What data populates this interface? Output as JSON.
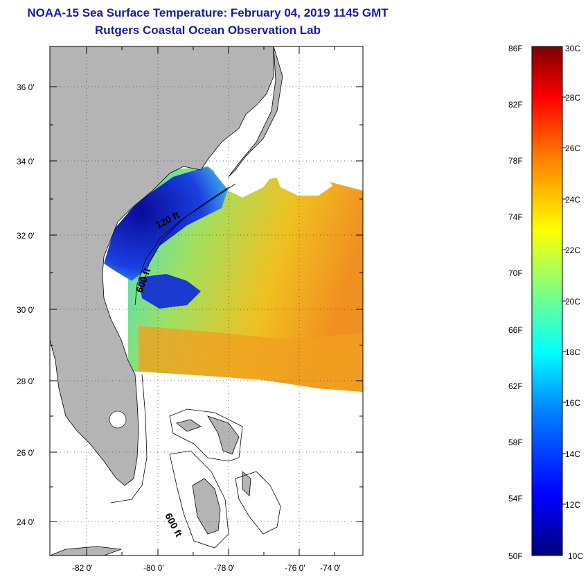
{
  "header": {
    "title": "NOAA-15 Sea Surface Temperature:  February 04, 2019 1145 GMT",
    "subtitle": "Rutgers Coastal Ocean Observation Lab"
  },
  "map": {
    "lat_ticks": [
      "36 0'",
      "34 0'",
      "32 0'",
      "30 0'",
      "28 0'",
      "26 0'",
      "24 0'"
    ],
    "lon_ticks": [
      "-82 0'",
      "-80 0'",
      "-78 0'",
      "-76 0'",
      "-74 0'"
    ],
    "depth_labels": [
      "120 ft",
      "600 ft",
      "600 ft"
    ],
    "colors": {
      "land": "#b4b4b4",
      "coast_line": "#000000"
    }
  },
  "colorbar": {
    "fahrenheit": [
      "86F",
      "82F",
      "78F",
      "74F",
      "70F",
      "66F",
      "62F",
      "58F",
      "54F",
      "50F"
    ],
    "celsius": [
      "30C",
      "28C",
      "26C",
      "24C",
      "22C",
      "20C",
      "18C",
      "16C",
      "14C",
      "12C",
      "10C"
    ]
  }
}
